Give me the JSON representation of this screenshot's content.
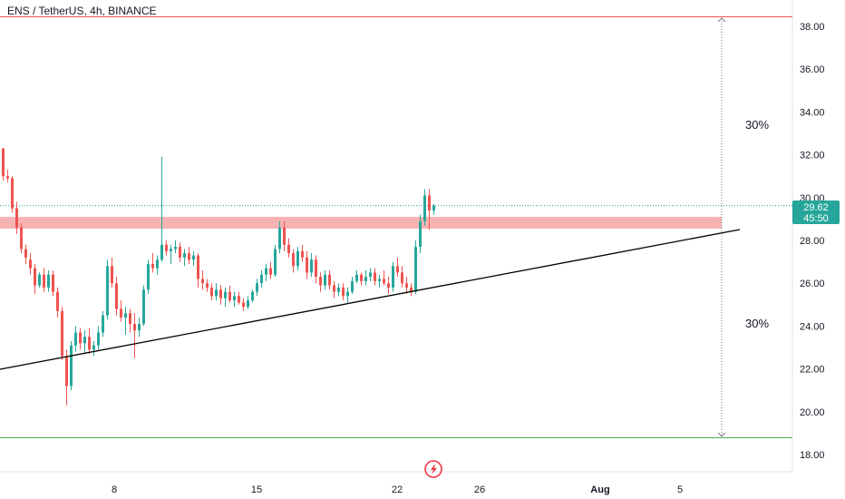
{
  "header": {
    "title": "ENS / TetherUS, 4h, BINANCE"
  },
  "price_label": {
    "price": "29.62",
    "countdown": "45:50"
  },
  "annotations": {
    "upper_pct": "30%",
    "lower_pct": "30%"
  },
  "colors": {
    "up": "#26a69a",
    "down": "#ef5350",
    "resistance_zone": "#f7b3b3",
    "top_line": "#ef5350",
    "bottom_line": "#4caf50",
    "trendline": "#000000",
    "price_tag": "#26a69a",
    "dotted": "#089981"
  },
  "icons": {
    "logo": "tradingview-lightning-icon"
  },
  "chart_data": {
    "type": "candlestick",
    "title": "ENS / TetherUS, 4h, BINANCE",
    "ylim": [
      17.5,
      39.2
    ],
    "y_ticks": [
      "18.00",
      "20.00",
      "22.00",
      "24.00",
      "26.00",
      "28.00",
      "30.00",
      "32.00",
      "34.00",
      "36.00",
      "38.00"
    ],
    "x_ticks": [
      "8",
      "15",
      "22",
      "26",
      "Aug",
      "5"
    ],
    "last_price": 29.62,
    "levels": {
      "top": 38.5,
      "bottom": 18.7,
      "zone_low": 28.6,
      "zone_high": 29.2
    },
    "trendline": [
      {
        "date": "Jul 2",
        "value": 20.0
      },
      {
        "date": "Aug 6",
        "value": 28.5
      }
    ],
    "measure_labels": [
      "30%",
      "30%"
    ],
    "candles": [
      [
        32.3,
        32.3,
        30.8,
        31.0
      ],
      [
        31.0,
        31.3,
        30.7,
        30.9
      ],
      [
        30.9,
        31.0,
        29.3,
        29.5
      ],
      [
        29.5,
        29.8,
        28.3,
        28.6
      ],
      [
        28.6,
        28.8,
        27.4,
        27.6
      ],
      [
        27.6,
        27.8,
        26.9,
        27.2
      ],
      [
        27.1,
        27.4,
        26.4,
        26.7
      ],
      [
        26.7,
        26.9,
        25.5,
        25.9
      ],
      [
        25.9,
        26.5,
        25.8,
        26.4
      ],
      [
        26.4,
        26.7,
        25.6,
        25.8
      ],
      [
        25.8,
        26.6,
        25.6,
        26.4
      ],
      [
        26.4,
        26.6,
        25.4,
        25.6
      ],
      [
        25.6,
        25.8,
        24.4,
        24.7
      ],
      [
        24.7,
        24.9,
        22.4,
        22.6
      ],
      [
        22.6,
        22.9,
        20.3,
        21.2
      ],
      [
        21.2,
        23.3,
        21.0,
        23.1
      ],
      [
        23.1,
        24.0,
        22.8,
        23.7
      ],
      [
        23.7,
        23.9,
        22.9,
        23.2
      ],
      [
        23.2,
        23.8,
        22.7,
        23.5
      ],
      [
        23.5,
        23.9,
        22.7,
        22.9
      ],
      [
        22.9,
        23.3,
        22.6,
        23.1
      ],
      [
        23.1,
        24.0,
        22.9,
        23.7
      ],
      [
        23.7,
        24.7,
        23.5,
        24.5
      ],
      [
        24.5,
        27.1,
        24.3,
        26.8
      ],
      [
        26.8,
        27.2,
        25.8,
        26.0
      ],
      [
        26.0,
        26.3,
        24.5,
        24.8
      ],
      [
        24.8,
        25.2,
        24.2,
        24.4
      ],
      [
        24.4,
        24.9,
        23.6,
        24.6
      ],
      [
        24.6,
        24.8,
        23.7,
        24.1
      ],
      [
        24.1,
        24.6,
        22.5,
        23.8
      ],
      [
        23.8,
        24.4,
        23.5,
        24.1
      ],
      [
        24.1,
        25.9,
        24.0,
        25.7
      ],
      [
        25.7,
        27.1,
        25.5,
        26.9
      ],
      [
        26.9,
        27.4,
        26.5,
        26.7
      ],
      [
        26.7,
        27.3,
        26.4,
        27.1
      ],
      [
        27.1,
        31.9,
        27.0,
        27.8
      ],
      [
        27.8,
        28.0,
        27.3,
        27.5
      ],
      [
        27.5,
        27.8,
        26.9,
        27.6
      ],
      [
        27.6,
        28.0,
        27.4,
        27.7
      ],
      [
        27.7,
        27.9,
        27.0,
        27.2
      ],
      [
        27.2,
        27.6,
        26.8,
        27.4
      ],
      [
        27.4,
        27.7,
        26.9,
        27.1
      ],
      [
        27.1,
        27.5,
        26.8,
        27.3
      ],
      [
        27.3,
        27.4,
        25.8,
        26.2
      ],
      [
        26.2,
        26.6,
        25.7,
        26.0
      ],
      [
        26.0,
        26.2,
        25.6,
        25.8
      ],
      [
        25.8,
        26.0,
        25.2,
        25.4
      ],
      [
        25.4,
        26.0,
        25.2,
        25.7
      ],
      [
        25.7,
        25.9,
        25.0,
        25.3
      ],
      [
        25.3,
        25.8,
        24.9,
        25.6
      ],
      [
        25.6,
        25.9,
        25.1,
        25.2
      ],
      [
        25.2,
        25.6,
        24.9,
        25.4
      ],
      [
        25.4,
        25.6,
        25.0,
        25.1
      ],
      [
        25.1,
        25.3,
        24.7,
        24.9
      ],
      [
        24.9,
        25.4,
        24.8,
        25.2
      ],
      [
        25.2,
        25.7,
        25.1,
        25.6
      ],
      [
        25.6,
        26.2,
        25.4,
        26.0
      ],
      [
        26.0,
        26.6,
        25.8,
        26.4
      ],
      [
        26.4,
        26.9,
        26.1,
        26.7
      ],
      [
        26.7,
        27.0,
        26.2,
        26.4
      ],
      [
        26.4,
        27.8,
        26.3,
        27.6
      ],
      [
        27.6,
        28.9,
        27.4,
        28.6
      ],
      [
        28.6,
        28.9,
        27.5,
        27.8
      ],
      [
        27.8,
        28.1,
        27.2,
        27.4
      ],
      [
        27.4,
        27.6,
        26.5,
        26.8
      ],
      [
        26.8,
        27.7,
        26.6,
        27.5
      ],
      [
        27.5,
        27.8,
        27.0,
        27.2
      ],
      [
        27.2,
        27.5,
        26.2,
        26.5
      ],
      [
        26.5,
        27.4,
        26.3,
        27.1
      ],
      [
        27.1,
        27.3,
        26.0,
        26.3
      ],
      [
        26.3,
        26.5,
        25.6,
        25.9
      ],
      [
        25.9,
        26.6,
        25.7,
        26.4
      ],
      [
        26.4,
        26.6,
        25.7,
        25.9
      ],
      [
        25.9,
        26.1,
        25.3,
        25.6
      ],
      [
        25.6,
        26.0,
        25.4,
        25.8
      ],
      [
        25.8,
        26.0,
        25.2,
        25.4
      ],
      [
        25.4,
        25.8,
        25.1,
        25.6
      ],
      [
        25.6,
        26.3,
        25.5,
        26.1
      ],
      [
        26.1,
        26.6,
        26.0,
        26.4
      ],
      [
        26.4,
        26.5,
        25.9,
        26.1
      ],
      [
        26.1,
        26.6,
        25.9,
        26.3
      ],
      [
        26.3,
        26.7,
        26.1,
        26.5
      ],
      [
        26.5,
        26.7,
        25.9,
        26.1
      ],
      [
        26.1,
        26.4,
        25.8,
        26.2
      ],
      [
        26.2,
        26.6,
        25.9,
        26.0
      ],
      [
        26.0,
        26.3,
        25.5,
        25.8
      ],
      [
        25.8,
        27.0,
        25.6,
        26.8
      ],
      [
        26.8,
        27.2,
        26.3,
        26.5
      ],
      [
        26.5,
        26.8,
        25.8,
        26.0
      ],
      [
        26.0,
        26.3,
        25.5,
        25.8
      ],
      [
        25.8,
        26.0,
        25.4,
        25.6
      ],
      [
        25.6,
        28.0,
        25.5,
        27.7
      ],
      [
        27.7,
        29.2,
        27.4,
        28.9
      ],
      [
        28.9,
        30.4,
        28.7,
        30.1
      ],
      [
        30.1,
        30.4,
        28.5,
        29.4
      ],
      [
        29.4,
        29.7,
        29.2,
        29.62
      ]
    ]
  }
}
